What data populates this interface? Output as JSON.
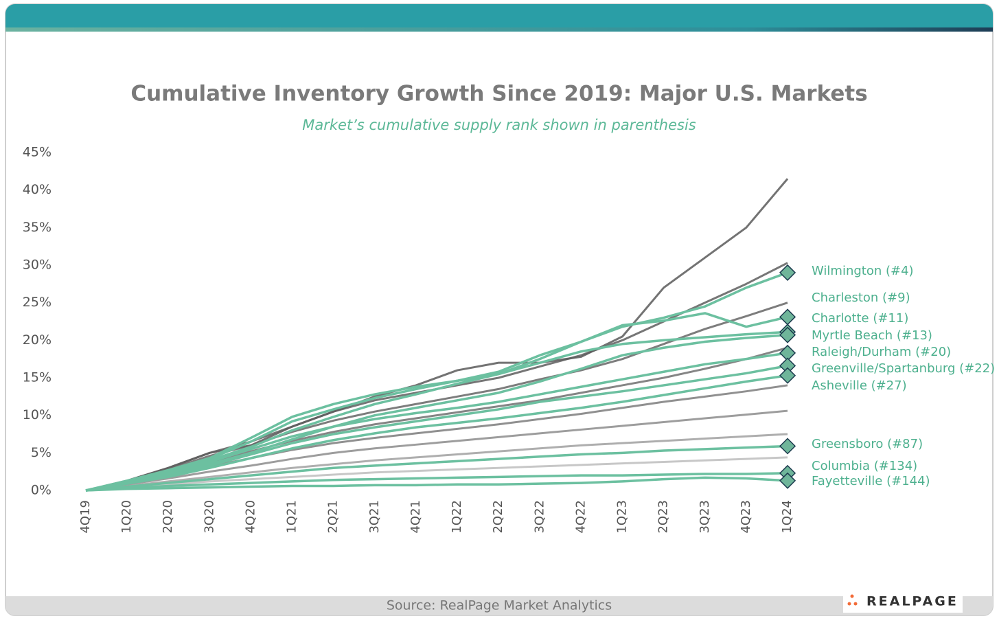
{
  "chart_data": {
    "type": "line",
    "title": "Cumulative Inventory Growth Since 2019: Major U.S. Markets",
    "subtitle": "Market’s cumulative supply rank shown in parenthesis",
    "source": "Source: RealPage Market Analytics",
    "brand": "REALPAGE",
    "categories": [
      "4Q19",
      "1Q20",
      "2Q20",
      "3Q20",
      "4Q20",
      "1Q21",
      "2Q21",
      "3Q21",
      "4Q21",
      "1Q22",
      "2Q22",
      "3Q22",
      "4Q22",
      "1Q23",
      "2Q23",
      "3Q23",
      "4Q23",
      "1Q24"
    ],
    "ylim": [
      0,
      45
    ],
    "yticks": [
      {
        "value": 0,
        "label": "0%"
      },
      {
        "value": 5,
        "label": "5%"
      },
      {
        "value": 10,
        "label": "10%"
      },
      {
        "value": 15,
        "label": "15%"
      },
      {
        "value": 20,
        "label": "20%"
      },
      {
        "value": 25,
        "label": "25%"
      },
      {
        "value": 30,
        "label": "30%"
      },
      {
        "value": 35,
        "label": "35%"
      },
      {
        "value": 40,
        "label": "40%"
      },
      {
        "value": 45,
        "label": "45%"
      }
    ],
    "series": [
      {
        "color": "#5a5a5a",
        "values": [
          0,
          1.3,
          3,
          5,
          6,
          8.5,
          10.5,
          12.5,
          14,
          16,
          17,
          17,
          17.8,
          20.5,
          27,
          31,
          35,
          41.5
        ]
      },
      {
        "color": "#5e5e5e",
        "values": [
          0,
          1.3,
          3,
          5,
          6.5,
          8.5,
          10.5,
          12,
          13,
          14,
          15,
          16.5,
          18,
          20,
          22.5,
          25,
          27.5,
          30.3
        ]
      },
      {
        "color": "#666666",
        "values": [
          0,
          1.2,
          2.8,
          4.6,
          6,
          7.8,
          9.3,
          10.5,
          11.5,
          12.5,
          13.5,
          14.8,
          16,
          17.5,
          19.5,
          21.5,
          23.2,
          25
        ]
      },
      {
        "color": "#707070",
        "values": [
          0,
          1.1,
          2.4,
          3.8,
          5.2,
          6.6,
          7.8,
          8.8,
          9.6,
          10.4,
          11.2,
          12,
          13,
          14,
          15,
          16.2,
          17.5,
          19
        ]
      },
      {
        "color": "#7c7c7c",
        "values": [
          0,
          1,
          2,
          3.2,
          4.3,
          5.4,
          6.3,
          7,
          7.6,
          8.2,
          8.8,
          9.5,
          10.2,
          11,
          11.8,
          12.5,
          13.2,
          14
        ]
      },
      {
        "color": "#8c8c8c",
        "values": [
          0,
          0.8,
          1.6,
          2.5,
          3.3,
          4.2,
          5,
          5.6,
          6.1,
          6.6,
          7.1,
          7.6,
          8.1,
          8.6,
          9.1,
          9.6,
          10.1,
          10.6
        ]
      },
      {
        "color": "#a0a0a0",
        "values": [
          0,
          0.6,
          1.2,
          1.8,
          2.4,
          3,
          3.5,
          4,
          4.4,
          4.8,
          5.2,
          5.6,
          6,
          6.3,
          6.6,
          6.9,
          7.2,
          7.5
        ]
      },
      {
        "color": "#bdbdbd",
        "values": [
          0,
          0.4,
          0.8,
          1.2,
          1.5,
          1.8,
          2.1,
          2.4,
          2.6,
          2.8,
          3,
          3.2,
          3.4,
          3.6,
          3.8,
          4,
          4.2,
          4.4
        ]
      },
      {
        "name": "Wilmington (#4)",
        "color": "#6cc0a0",
        "values": [
          0,
          1.2,
          2.6,
          4.2,
          6.5,
          9.2,
          10.8,
          12.3,
          13.5,
          14.6,
          15.8,
          18,
          19.8,
          21.8,
          23,
          24.5,
          27,
          29
        ]
      },
      {
        "name": "Charleston (#9)",
        "color": "#6cc0a0",
        "values": [
          0,
          1.2,
          2.5,
          4,
          5.8,
          8,
          9.8,
          11.5,
          12.8,
          14.2,
          15.5,
          17,
          18.5,
          19.5,
          20,
          20.4,
          20.8,
          21.1
        ]
      },
      {
        "name": "Charlotte (#11)",
        "color": "#6cc0a0",
        "values": [
          0,
          1.3,
          2.7,
          4.3,
          7,
          9.8,
          11.5,
          12.8,
          13.8,
          14.6,
          15.5,
          17.5,
          19.8,
          22,
          22.6,
          23.6,
          21.8,
          23.1
        ]
      },
      {
        "name": "Myrtle Beach (#13)",
        "color": "#6cc0a0",
        "values": [
          0,
          1,
          2.2,
          3.5,
          5,
          6.8,
          8.5,
          10,
          11,
          12,
          13,
          14.5,
          16.2,
          18,
          19,
          19.8,
          20.3,
          20.7
        ]
      },
      {
        "name": "Raleigh/Durham (#20)",
        "color": "#6cc0a0",
        "values": [
          0,
          1.1,
          2.3,
          3.8,
          5.5,
          7.2,
          8.5,
          9.5,
          10.3,
          11,
          11.8,
          12.8,
          13.8,
          14.8,
          15.8,
          16.8,
          17.5,
          18.3
        ]
      },
      {
        "name": "Greenville/Spartanburg (#22)",
        "color": "#6cc0a0",
        "values": [
          0,
          1,
          2,
          3.3,
          4.8,
          6.3,
          7.5,
          8.4,
          9.2,
          10,
          10.8,
          11.8,
          12.5,
          13.2,
          14,
          14.8,
          15.6,
          16.6
        ]
      },
      {
        "name": "Asheville (#27)",
        "color": "#6cc0a0",
        "values": [
          0,
          0.9,
          1.8,
          3,
          4.3,
          5.6,
          6.7,
          7.6,
          8.4,
          9,
          9.6,
          10.3,
          11,
          11.8,
          12.7,
          13.6,
          14.5,
          15.3
        ]
      },
      {
        "name": "Greensboro (#87)",
        "color": "#6cc0a0",
        "values": [
          0,
          0.5,
          1,
          1.5,
          2,
          2.5,
          3,
          3.3,
          3.6,
          3.9,
          4.2,
          4.5,
          4.8,
          5,
          5.3,
          5.5,
          5.7,
          5.9
        ]
      },
      {
        "name": "Columbia (#134)",
        "color": "#6cc0a0",
        "values": [
          0,
          0.3,
          0.6,
          0.8,
          1,
          1.2,
          1.4,
          1.5,
          1.6,
          1.7,
          1.8,
          1.9,
          2,
          2,
          2.1,
          2.2,
          2.2,
          2.3
        ]
      },
      {
        "name": "Fayetteville (#144)",
        "color": "#6cc0a0",
        "values": [
          0,
          0.2,
          0.3,
          0.4,
          0.5,
          0.6,
          0.6,
          0.7,
          0.7,
          0.8,
          0.8,
          0.9,
          1,
          1.2,
          1.5,
          1.7,
          1.6,
          1.3
        ]
      }
    ]
  }
}
